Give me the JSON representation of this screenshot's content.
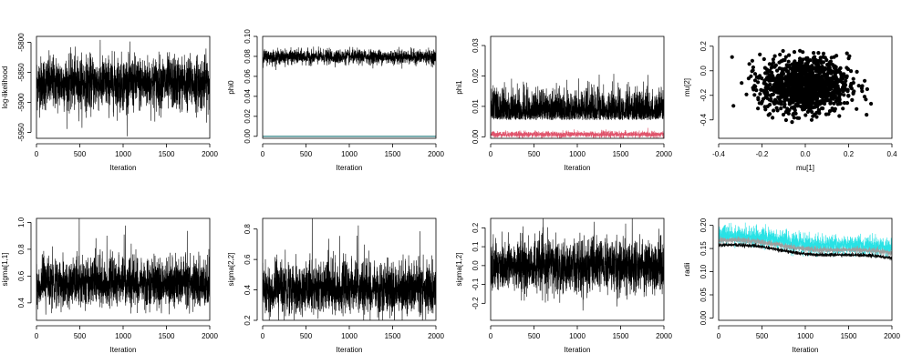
{
  "chart_data": [
    {
      "id": "loglik",
      "type": "line",
      "xlabel": "Iteration",
      "ylabel": "log-likelihood",
      "xlim": [
        0,
        2000
      ],
      "ylim": [
        -5960,
        -5790
      ],
      "xticks": [
        0,
        500,
        1000,
        1500,
        2000
      ],
      "yticks": [
        -5950,
        -5900,
        -5850,
        -5800
      ],
      "series": [
        {
          "color": "#000000",
          "mean": -5868,
          "sd": 22,
          "n": 2000
        }
      ]
    },
    {
      "id": "phi0",
      "type": "line",
      "xlabel": "Iteration",
      "ylabel": "phi0",
      "xlim": [
        0,
        2000
      ],
      "ylim": [
        -0.002,
        0.1
      ],
      "xticks": [
        0,
        500,
        1000,
        1500,
        2000
      ],
      "yticks": [
        0.0,
        0.02,
        0.04,
        0.06,
        0.08,
        0.1
      ],
      "series": [
        {
          "color": "#000000",
          "mean": 0.0795,
          "sd": 0.0035,
          "n": 2000
        },
        {
          "color": "#5f9ea0",
          "mean": 0.0,
          "sd": 0.0,
          "n": 2000
        }
      ]
    },
    {
      "id": "phi1",
      "type": "line",
      "xlabel": "Iteration",
      "ylabel": "phi1",
      "xlim": [
        0,
        2000
      ],
      "ylim": [
        -0.0005,
        0.033
      ],
      "xticks": [
        0,
        500,
        1000,
        1500,
        2000
      ],
      "yticks": [
        0.0,
        0.01,
        0.02,
        0.03
      ],
      "series": [
        {
          "color": "#000000",
          "mean": 0.0075,
          "sd": 0.0045,
          "n": 2000
        },
        {
          "color": "#df536b",
          "mean": 0.0008,
          "sd": 0.0005,
          "n": 2000
        }
      ]
    },
    {
      "id": "mu",
      "type": "scatter",
      "xlabel": "mu[1]",
      "ylabel": "mu[2]",
      "xlim": [
        -0.4,
        0.4
      ],
      "ylim": [
        -0.55,
        0.28
      ],
      "xticks": [
        -0.4,
        -0.2,
        0.0,
        0.2,
        0.4
      ],
      "yticks": [
        -0.4,
        -0.2,
        0.0,
        0.2
      ],
      "series": [
        {
          "color": "#000000",
          "mean_x": 0.0,
          "sd_x": 0.1,
          "mean_y": -0.12,
          "sd_y": 0.11,
          "n": 1200
        }
      ]
    },
    {
      "id": "sigma11",
      "type": "line",
      "xlabel": "Iteration",
      "ylabel": "sigma[1,1]",
      "xlim": [
        0,
        2000
      ],
      "ylim": [
        0.27,
        1.03
      ],
      "xticks": [
        0,
        500,
        1000,
        1500,
        2000
      ],
      "yticks": [
        0.4,
        0.6,
        0.8,
        1.0
      ],
      "series": [
        {
          "color": "#000000",
          "mean": 0.54,
          "sd": 0.085,
          "n": 2000
        }
      ]
    },
    {
      "id": "sigma22",
      "type": "line",
      "xlabel": "Iteration",
      "ylabel": "sigma[2,2]",
      "xlim": [
        0,
        2000
      ],
      "ylim": [
        0.2,
        0.87
      ],
      "xticks": [
        0,
        500,
        1000,
        1500,
        2000
      ],
      "yticks": [
        0.2,
        0.4,
        0.6,
        0.8
      ],
      "series": [
        {
          "color": "#000000",
          "mean": 0.4,
          "sd": 0.08,
          "n": 2000
        }
      ]
    },
    {
      "id": "sigma12",
      "type": "line",
      "xlabel": "Iteration",
      "ylabel": "sigma[1,2]",
      "xlim": [
        0,
        2000
      ],
      "ylim": [
        -0.29,
        0.25
      ],
      "xticks": [
        0,
        500,
        1000,
        1500,
        2000
      ],
      "yticks": [
        -0.2,
        -0.1,
        0.0,
        0.1,
        0.2
      ],
      "series": [
        {
          "color": "#000000",
          "mean": 0.0,
          "sd": 0.07,
          "n": 2000
        }
      ]
    },
    {
      "id": "radii",
      "type": "line",
      "xlabel": "Iteration",
      "ylabel": "radii",
      "xlim": [
        0,
        2000
      ],
      "ylim": [
        -0.005,
        0.215
      ],
      "xticks": [
        0,
        500,
        1000,
        1500,
        2000
      ],
      "yticks": [
        0.0,
        0.05,
        0.1,
        0.15,
        0.2
      ],
      "series": [
        {
          "color": "#28e2e5",
          "start": 0.178,
          "end": 0.148,
          "sd": 0.01,
          "n": 2000
        },
        {
          "color": "#9e9e9e",
          "start": 0.168,
          "end": 0.138,
          "sd": 0.003,
          "n": 2000
        },
        {
          "color": "#000000",
          "start": 0.158,
          "end": 0.127,
          "sd": 0.002,
          "n": 2000
        }
      ]
    }
  ]
}
